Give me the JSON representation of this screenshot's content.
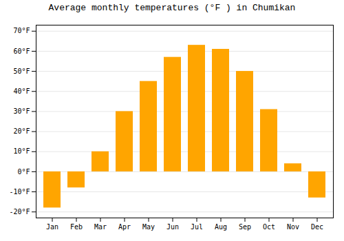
{
  "chart_data": {
    "type": "bar",
    "title": "Average monthly temperatures (°F ) in Chumikan",
    "categories": [
      "Jan",
      "Feb",
      "Mar",
      "Apr",
      "May",
      "Jun",
      "Jul",
      "Aug",
      "Sep",
      "Oct",
      "Nov",
      "Dec"
    ],
    "values": [
      -18,
      -8,
      10,
      30,
      45,
      57,
      63,
      61,
      50,
      31,
      4,
      -13
    ],
    "color": "#FFA500",
    "ylim": [
      -23,
      73
    ],
    "yticks": [
      {
        "value": -20,
        "label": "-20°F"
      },
      {
        "value": -10,
        "label": "-10°F"
      },
      {
        "value": 0,
        "label": "0°F"
      },
      {
        "value": 10,
        "label": "10°F"
      },
      {
        "value": 20,
        "label": "20°F"
      },
      {
        "value": 30,
        "label": "30°F"
      },
      {
        "value": 40,
        "label": "40°F"
      },
      {
        "value": 50,
        "label": "50°F"
      },
      {
        "value": 60,
        "label": "60°F"
      },
      {
        "value": 70,
        "label": "70°F"
      }
    ],
    "grid": true
  }
}
